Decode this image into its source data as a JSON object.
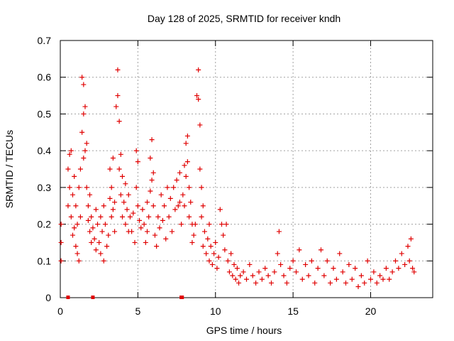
{
  "chart_data": {
    "type": "scatter",
    "title": "Day 128 of 2025, SRMTID for receiver kndh",
    "xlabel": "GPS time / hours",
    "ylabel": "SRMTID / TECUs",
    "xlim": [
      0,
      24
    ],
    "ylim": [
      0,
      0.7
    ],
    "x_ticks": [
      0,
      5,
      10,
      15,
      20
    ],
    "y_ticks": [
      0,
      0.1,
      0.2,
      0.3,
      0.4,
      0.5,
      0.6,
      0.7
    ],
    "x_tick_labels": [
      "0",
      "5",
      "10",
      "15",
      "20"
    ],
    "y_tick_labels": [
      "0",
      "0.1",
      "0.2",
      "0.3",
      "0.4",
      "0.5",
      "0.6",
      "0.7"
    ],
    "grid": true,
    "marker": "plus",
    "series_color": "#e00000",
    "series": [
      {
        "name": "SRMTID",
        "points": [
          [
            0.05,
            0.2
          ],
          [
            0.05,
            0.15
          ],
          [
            0.05,
            0.1
          ],
          [
            0.5,
            0.35
          ],
          [
            0.5,
            0.25
          ],
          [
            0.6,
            0.39
          ],
          [
            0.6,
            0.3
          ],
          [
            0.7,
            0.4
          ],
          [
            0.7,
            0.22
          ],
          [
            0.8,
            0.28
          ],
          [
            0.8,
            0.17
          ],
          [
            0.9,
            0.33
          ],
          [
            0.9,
            0.19
          ],
          [
            1.0,
            0.25
          ],
          [
            1.0,
            0.14
          ],
          [
            1.1,
            0.12
          ],
          [
            1.1,
            0.2
          ],
          [
            1.2,
            0.3
          ],
          [
            1.2,
            0.1
          ],
          [
            1.3,
            0.35
          ],
          [
            1.3,
            0.22
          ],
          [
            1.4,
            0.6
          ],
          [
            1.4,
            0.45
          ],
          [
            1.5,
            0.58
          ],
          [
            1.5,
            0.5
          ],
          [
            1.5,
            0.38
          ],
          [
            1.6,
            0.52
          ],
          [
            1.6,
            0.4
          ],
          [
            1.7,
            0.42
          ],
          [
            1.7,
            0.3
          ],
          [
            1.8,
            0.25
          ],
          [
            1.8,
            0.21
          ],
          [
            1.9,
            0.28
          ],
          [
            1.9,
            0.18
          ],
          [
            2.0,
            0.22
          ],
          [
            2.0,
            0.15
          ],
          [
            2.1,
            0.19
          ],
          [
            2.2,
            0.16
          ],
          [
            2.3,
            0.24
          ],
          [
            2.3,
            0.13
          ],
          [
            2.4,
            0.2
          ],
          [
            2.5,
            0.15
          ],
          [
            2.6,
            0.22
          ],
          [
            2.6,
            0.12
          ],
          [
            2.7,
            0.18
          ],
          [
            2.8,
            0.25
          ],
          [
            2.8,
            0.1
          ],
          [
            2.9,
            0.2
          ],
          [
            3.0,
            0.14
          ],
          [
            3.1,
            0.17
          ],
          [
            3.2,
            0.35
          ],
          [
            3.2,
            0.27
          ],
          [
            3.3,
            0.3
          ],
          [
            3.3,
            0.22
          ],
          [
            3.4,
            0.38
          ],
          [
            3.4,
            0.24
          ],
          [
            3.5,
            0.26
          ],
          [
            3.5,
            0.18
          ],
          [
            3.6,
            0.52
          ],
          [
            3.7,
            0.62
          ],
          [
            3.7,
            0.55
          ],
          [
            3.8,
            0.48
          ],
          [
            3.8,
            0.35
          ],
          [
            3.9,
            0.39
          ],
          [
            3.9,
            0.28
          ],
          [
            4.0,
            0.33
          ],
          [
            4.0,
            0.22
          ],
          [
            4.1,
            0.26
          ],
          [
            4.2,
            0.31
          ],
          [
            4.2,
            0.2
          ],
          [
            4.3,
            0.24
          ],
          [
            4.4,
            0.28
          ],
          [
            4.4,
            0.18
          ],
          [
            4.5,
            0.22
          ],
          [
            4.6,
            0.18
          ],
          [
            4.7,
            0.23
          ],
          [
            4.8,
            0.15
          ],
          [
            4.9,
            0.4
          ],
          [
            4.9,
            0.3
          ],
          [
            5.0,
            0.37
          ],
          [
            5.0,
            0.25
          ],
          [
            5.1,
            0.21
          ],
          [
            5.2,
            0.19
          ],
          [
            5.3,
            0.24
          ],
          [
            5.4,
            0.2
          ],
          [
            5.5,
            0.15
          ],
          [
            5.6,
            0.26
          ],
          [
            5.6,
            0.18
          ],
          [
            5.7,
            0.22
          ],
          [
            5.8,
            0.38
          ],
          [
            5.8,
            0.29
          ],
          [
            5.9,
            0.43
          ],
          [
            5.9,
            0.32
          ],
          [
            6.0,
            0.34
          ],
          [
            6.0,
            0.25
          ],
          [
            6.1,
            0.17
          ],
          [
            6.2,
            0.14
          ],
          [
            6.3,
            0.22
          ],
          [
            6.4,
            0.19
          ],
          [
            6.5,
            0.28
          ],
          [
            6.6,
            0.21
          ],
          [
            6.7,
            0.25
          ],
          [
            6.8,
            0.16
          ],
          [
            6.9,
            0.3
          ],
          [
            7.0,
            0.22
          ],
          [
            7.1,
            0.27
          ],
          [
            7.2,
            0.18
          ],
          [
            7.3,
            0.3
          ],
          [
            7.4,
            0.24
          ],
          [
            7.5,
            0.32
          ],
          [
            7.6,
            0.25
          ],
          [
            7.7,
            0.34
          ],
          [
            7.7,
            0.26
          ],
          [
            7.8,
            0.2
          ],
          [
            7.9,
            0.28
          ],
          [
            8.0,
            0.36
          ],
          [
            8.0,
            0.25
          ],
          [
            8.1,
            0.42
          ],
          [
            8.1,
            0.33
          ],
          [
            8.2,
            0.44
          ],
          [
            8.2,
            0.37
          ],
          [
            8.3,
            0.3
          ],
          [
            8.3,
            0.22
          ],
          [
            8.4,
            0.26
          ],
          [
            8.5,
            0.2
          ],
          [
            8.5,
            0.15
          ],
          [
            8.6,
            0.17
          ],
          [
            8.7,
            0.2
          ],
          [
            8.8,
            0.55
          ],
          [
            8.9,
            0.62
          ],
          [
            8.9,
            0.54
          ],
          [
            9.0,
            0.47
          ],
          [
            9.0,
            0.35
          ],
          [
            9.1,
            0.3
          ],
          [
            9.1,
            0.22
          ],
          [
            9.2,
            0.25
          ],
          [
            9.2,
            0.14
          ],
          [
            9.3,
            0.18
          ],
          [
            9.4,
            0.12
          ],
          [
            9.5,
            0.16
          ],
          [
            9.6,
            0.2
          ],
          [
            9.6,
            0.1
          ],
          [
            9.7,
            0.14
          ],
          [
            9.8,
            0.09
          ],
          [
            9.9,
            0.12
          ],
          [
            10.0,
            0.15
          ],
          [
            10.1,
            0.08
          ],
          [
            10.2,
            0.11
          ],
          [
            10.3,
            0.24
          ],
          [
            10.4,
            0.2
          ],
          [
            10.5,
            0.17
          ],
          [
            10.6,
            0.13
          ],
          [
            10.7,
            0.2
          ],
          [
            10.8,
            0.1
          ],
          [
            10.9,
            0.07
          ],
          [
            11.0,
            0.12
          ],
          [
            11.1,
            0.06
          ],
          [
            11.2,
            0.09
          ],
          [
            11.3,
            0.05
          ],
          [
            11.4,
            0.08
          ],
          [
            11.5,
            0.04
          ],
          [
            11.6,
            0.06
          ],
          [
            11.8,
            0.07
          ],
          [
            12.0,
            0.05
          ],
          [
            12.2,
            0.09
          ],
          [
            12.4,
            0.06
          ],
          [
            12.6,
            0.04
          ],
          [
            12.8,
            0.07
          ],
          [
            13.0,
            0.05
          ],
          [
            13.2,
            0.08
          ],
          [
            13.4,
            0.06
          ],
          [
            13.6,
            0.04
          ],
          [
            13.8,
            0.07
          ],
          [
            14.0,
            0.12
          ],
          [
            14.1,
            0.18
          ],
          [
            14.2,
            0.09
          ],
          [
            14.4,
            0.06
          ],
          [
            14.6,
            0.04
          ],
          [
            14.8,
            0.08
          ],
          [
            15.0,
            0.1
          ],
          [
            15.2,
            0.07
          ],
          [
            15.4,
            0.13
          ],
          [
            15.6,
            0.05
          ],
          [
            15.8,
            0.09
          ],
          [
            16.0,
            0.06
          ],
          [
            16.2,
            0.1
          ],
          [
            16.4,
            0.04
          ],
          [
            16.6,
            0.08
          ],
          [
            16.8,
            0.13
          ],
          [
            17.0,
            0.06
          ],
          [
            17.2,
            0.1
          ],
          [
            17.4,
            0.04
          ],
          [
            17.6,
            0.08
          ],
          [
            17.8,
            0.05
          ],
          [
            18.0,
            0.12
          ],
          [
            18.2,
            0.07
          ],
          [
            18.4,
            0.04
          ],
          [
            18.6,
            0.09
          ],
          [
            18.8,
            0.05
          ],
          [
            19.0,
            0.08
          ],
          [
            19.2,
            0.03
          ],
          [
            19.4,
            0.06
          ],
          [
            19.6,
            0.04
          ],
          [
            19.8,
            0.1
          ],
          [
            20.0,
            0.05
          ],
          [
            20.2,
            0.07
          ],
          [
            20.4,
            0.04
          ],
          [
            20.6,
            0.06
          ],
          [
            20.8,
            0.05
          ],
          [
            21.0,
            0.08
          ],
          [
            21.2,
            0.05
          ],
          [
            21.4,
            0.07
          ],
          [
            21.6,
            0.1
          ],
          [
            21.8,
            0.08
          ],
          [
            22.0,
            0.12
          ],
          [
            22.2,
            0.09
          ],
          [
            22.4,
            0.14
          ],
          [
            22.5,
            0.1
          ],
          [
            22.6,
            0.16
          ],
          [
            22.7,
            0.08
          ],
          [
            22.8,
            0.07
          ]
        ]
      }
    ],
    "axis_markers": {
      "description_color": "#e00000",
      "x": [
        0.5,
        2.1,
        7.8,
        7.85
      ]
    }
  }
}
